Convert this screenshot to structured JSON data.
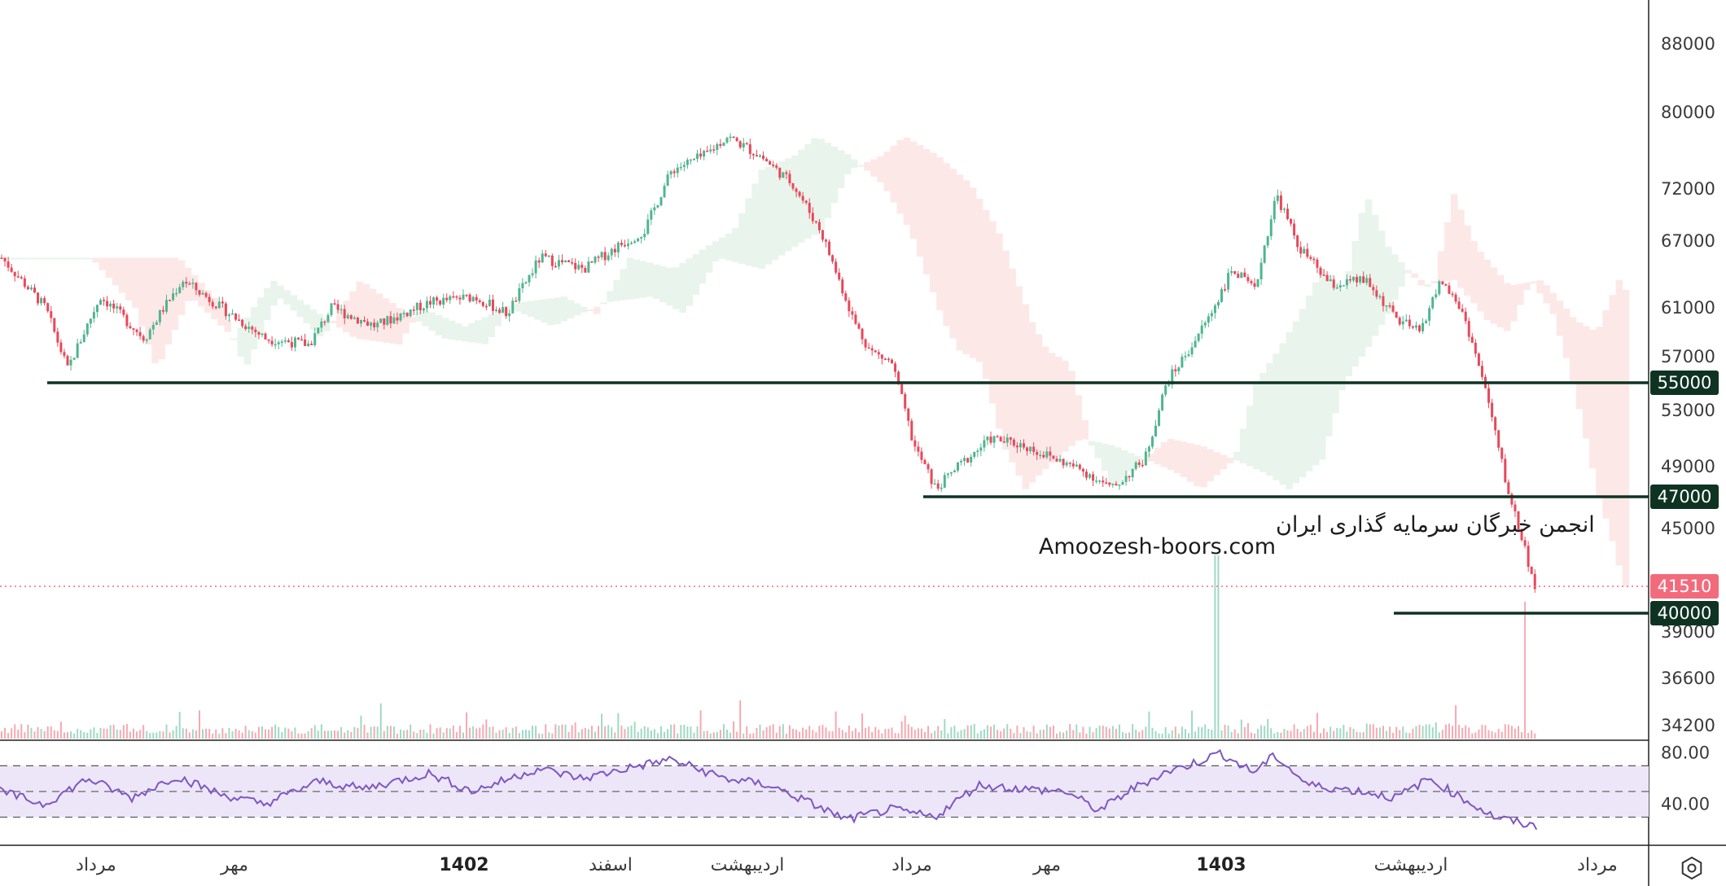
{
  "chart_data": {
    "type": "candlestick",
    "price_axis": {
      "ticks": [
        "88000",
        "80000",
        "72000",
        "67000",
        "61000",
        "57000",
        "53000",
        "49000",
        "45000",
        "39000",
        "36600",
        "34200"
      ]
    },
    "time_axis": {
      "labels": [
        {
          "text": "مرداد",
          "year": false
        },
        {
          "text": "مهر",
          "year": false
        },
        {
          "text": "1402",
          "year": true
        },
        {
          "text": "اسفند",
          "year": false
        },
        {
          "text": "اردیبهشت",
          "year": false
        },
        {
          "text": "مرداد",
          "year": false
        },
        {
          "text": "مهر",
          "year": false
        },
        {
          "text": "1403",
          "year": true
        },
        {
          "text": "اردیبهشت",
          "year": false
        },
        {
          "text": "مرداد",
          "year": false
        }
      ]
    },
    "support_lines": [
      {
        "price": 55000,
        "label": "55000"
      },
      {
        "price": 47000,
        "label": "47000"
      },
      {
        "price": 40000,
        "label": "40000"
      }
    ],
    "last_price": {
      "value": 41510,
      "label": "41510"
    },
    "rsi": {
      "levels": [
        70,
        50,
        30
      ],
      "ticks": [
        "80.00",
        "40.00"
      ]
    },
    "price_path": [
      [
        0,
        65500
      ],
      [
        40,
        61000
      ],
      [
        60,
        56000
      ],
      [
        90,
        62000
      ],
      [
        130,
        58500
      ],
      [
        165,
        63500
      ],
      [
        200,
        61000
      ],
      [
        240,
        58500
      ],
      [
        280,
        58000
      ],
      [
        300,
        61000
      ],
      [
        340,
        59500
      ],
      [
        390,
        61500
      ],
      [
        430,
        62000
      ],
      [
        460,
        60500
      ],
      [
        490,
        65500
      ],
      [
        530,
        64500
      ],
      [
        560,
        66500
      ],
      [
        585,
        68000
      ],
      [
        610,
        74000
      ],
      [
        640,
        75500
      ],
      [
        660,
        77500
      ],
      [
        690,
        75500
      ],
      [
        720,
        72500
      ],
      [
        745,
        68000
      ],
      [
        760,
        64000
      ],
      [
        775,
        60000
      ],
      [
        790,
        57500
      ],
      [
        810,
        56500
      ],
      [
        830,
        50500
      ],
      [
        850,
        47500
      ],
      [
        870,
        49000
      ],
      [
        900,
        51000
      ],
      [
        930,
        50500
      ],
      [
        960,
        49500
      ],
      [
        990,
        48500
      ],
      [
        1010,
        47500
      ],
      [
        1040,
        49500
      ],
      [
        1060,
        55000
      ],
      [
        1080,
        57500
      ],
      [
        1100,
        60500
      ],
      [
        1120,
        64500
      ],
      [
        1140,
        62500
      ],
      [
        1160,
        71500
      ],
      [
        1180,
        66500
      ],
      [
        1210,
        63000
      ],
      [
        1240,
        63500
      ],
      [
        1270,
        60000
      ],
      [
        1290,
        59000
      ],
      [
        1310,
        63500
      ],
      [
        1330,
        60500
      ],
      [
        1350,
        54500
      ],
      [
        1370,
        47500
      ],
      [
        1385,
        44000
      ],
      [
        1395,
        41510
      ]
    ],
    "rsi_path": [
      [
        0,
        50
      ],
      [
        40,
        40
      ],
      [
        80,
        60
      ],
      [
        120,
        45
      ],
      [
        160,
        62
      ],
      [
        200,
        48
      ],
      [
        240,
        40
      ],
      [
        290,
        58
      ],
      [
        330,
        52
      ],
      [
        390,
        64
      ],
      [
        430,
        50
      ],
      [
        490,
        68
      ],
      [
        530,
        60
      ],
      [
        570,
        68
      ],
      [
        610,
        75
      ],
      [
        660,
        60
      ],
      [
        700,
        55
      ],
      [
        740,
        40
      ],
      [
        770,
        28
      ],
      [
        810,
        36
      ],
      [
        850,
        30
      ],
      [
        890,
        55
      ],
      [
        930,
        52
      ],
      [
        970,
        50
      ],
      [
        1000,
        35
      ],
      [
        1030,
        52
      ],
      [
        1060,
        65
      ],
      [
        1080,
        70
      ],
      [
        1110,
        80
      ],
      [
        1140,
        65
      ],
      [
        1160,
        78
      ],
      [
        1190,
        55
      ],
      [
        1240,
        50
      ],
      [
        1270,
        45
      ],
      [
        1300,
        60
      ],
      [
        1330,
        45
      ],
      [
        1360,
        30
      ],
      [
        1400,
        22
      ]
    ]
  },
  "watermark": {
    "line1": "انجمن خبرگان سرمایه گذاری ایران",
    "line2": "Amoozesh-boors.com"
  },
  "colors": {
    "up": "#4fb58f",
    "down": "#e8485a",
    "support": "#0f3323",
    "last_price": "#f26b7c",
    "rsi_line": "#7e57c2",
    "rsi_band": "#ede6f8",
    "cloud_bull": "#e9f5ec",
    "cloud_bear": "#fde8e8"
  },
  "icons": {
    "settings": "settings-hex-icon"
  }
}
